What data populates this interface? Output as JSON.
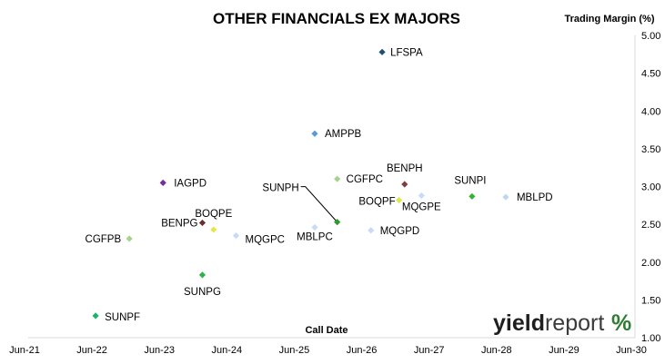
{
  "chart_data": {
    "type": "scatter",
    "title": "OTHER FINANCIALS EX MAJORS",
    "ylabel": "Trading Margin (%)",
    "xlabel": "Call Date",
    "ylim": [
      1.0,
      5.0
    ],
    "y_ticks": [
      "1.00",
      "1.50",
      "2.00",
      "2.50",
      "3.00",
      "3.50",
      "4.00",
      "4.50",
      "5.00"
    ],
    "xlim": [
      "2021-06",
      "2030-06"
    ],
    "x_ticks": [
      "Jun-21",
      "Jun-22",
      "Jun-23",
      "Jun-24",
      "Jun-25",
      "Jun-26",
      "Jun-27",
      "Jun-28",
      "Jun-29",
      "Jun-30"
    ],
    "grid": "none",
    "y_axis_side": "right",
    "points": [
      {
        "label": "LFSPA",
        "x": "2026-09",
        "y": 4.78,
        "color": "#1f4e79"
      },
      {
        "label": "AMPPB",
        "x": "2025-09",
        "y": 3.7,
        "color": "#5b9bd5"
      },
      {
        "label": "IAGPD",
        "x": "2023-06",
        "y": 3.05,
        "color": "#7030a0"
      },
      {
        "label": "CGFPC",
        "x": "2026-01",
        "y": 3.1,
        "color": "#a9d18e"
      },
      {
        "label": "BENPH",
        "x": "2027-01",
        "y": 3.03,
        "color": "#7f3f3f"
      },
      {
        "label": "SUNPI",
        "x": "2028-01",
        "y": 2.87,
        "color": "#33b233"
      },
      {
        "label": "MBLPD",
        "x": "2028-07",
        "y": 2.86,
        "color": "#bdd7ee"
      },
      {
        "label": "MQGPE",
        "x": "2027-04",
        "y": 2.88,
        "color": "#c9daf8"
      },
      {
        "label": "BOQPF",
        "x": "2026-12",
        "y": 2.82,
        "color": "#d9e84f"
      },
      {
        "label": "SUNPH",
        "x": "2026-01",
        "y": 2.53,
        "color": "#2e9b2e"
      },
      {
        "label": "BOQPE",
        "x": "2024-03",
        "y": 2.43,
        "color": "#e6e64d"
      },
      {
        "label": "BENPG",
        "x": "2024-01",
        "y": 2.52,
        "color": "#6b2e2e"
      },
      {
        "label": "MQGPC",
        "x": "2024-07",
        "y": 2.35,
        "color": "#c9daf8"
      },
      {
        "label": "MBLPC",
        "x": "2025-09",
        "y": 2.46,
        "color": "#c9daf8"
      },
      {
        "label": "MQGPD",
        "x": "2026-07",
        "y": 2.42,
        "color": "#c9daf8"
      },
      {
        "label": "CGFPB",
        "x": "2022-12",
        "y": 2.31,
        "color": "#a9d18e"
      },
      {
        "label": "SUNPG",
        "x": "2024-01",
        "y": 1.83,
        "color": "#2eb24a"
      },
      {
        "label": "SUNPF",
        "x": "2022-06",
        "y": 1.29,
        "color": "#1bb36a"
      }
    ]
  },
  "logo": {
    "text": "yieldreport",
    "bold_part": "yield",
    "light_part": "report",
    "symbol": "%"
  }
}
